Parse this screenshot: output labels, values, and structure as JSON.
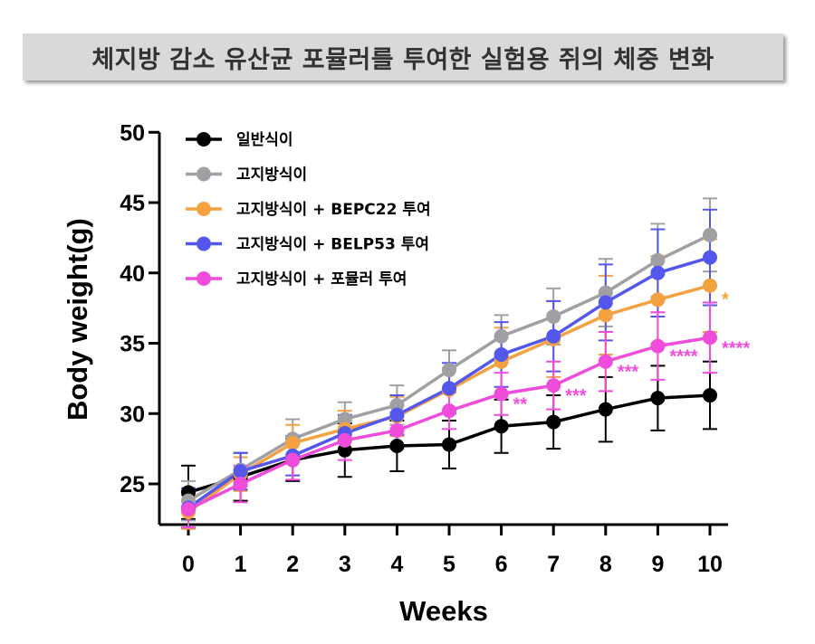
{
  "title": "체지방 감소 유산균 포뮬러를 투여한 실험용 쥐의 체중 변화",
  "chart_data": {
    "type": "line",
    "xlabel": "Weeks",
    "ylabel": "Body weight(g)",
    "xlim": [
      0,
      10
    ],
    "ylim": [
      22,
      50
    ],
    "x_ticks": [
      0,
      1,
      2,
      3,
      4,
      5,
      6,
      7,
      8,
      9,
      10
    ],
    "y_ticks": [
      25,
      30,
      35,
      40,
      45,
      50
    ],
    "grid": false,
    "legend_position": "top-left",
    "x": [
      0,
      1,
      2,
      3,
      4,
      5,
      6,
      7,
      8,
      9,
      10
    ],
    "series": [
      {
        "name": "일반식이",
        "color": "#000000",
        "values": [
          24.4,
          25.5,
          26.7,
          27.4,
          27.7,
          27.8,
          29.1,
          29.4,
          30.3,
          31.1,
          31.3
        ],
        "error": [
          1.9,
          1.7,
          1.5,
          1.9,
          1.8,
          1.7,
          1.9,
          1.9,
          2.3,
          2.3,
          2.4
        ]
      },
      {
        "name": "고지방식이",
        "color": "#a0a0a4",
        "values": [
          23.8,
          26.0,
          28.2,
          29.6,
          30.6,
          33.1,
          35.5,
          36.9,
          38.6,
          40.9,
          42.7
        ],
        "error": [
          1.4,
          1.2,
          1.4,
          1.2,
          1.4,
          1.4,
          1.5,
          2.0,
          2.4,
          2.6,
          2.6
        ]
      },
      {
        "name": "고지방식이 + BEPC22 투여",
        "color": "#f4a142",
        "values": [
          23.0,
          25.7,
          27.9,
          28.9,
          29.8,
          31.7,
          33.7,
          35.3,
          37.0,
          38.1,
          39.1
        ],
        "error": [
          1.2,
          1.2,
          1.3,
          1.3,
          1.4,
          1.5,
          2.4,
          2.7,
          2.8,
          3.1,
          3.3
        ]
      },
      {
        "name": "고지방식이 + BELP53 투여",
        "color": "#5457ee",
        "values": [
          23.3,
          25.9,
          27.0,
          28.6,
          29.9,
          31.8,
          34.2,
          35.5,
          37.9,
          40.0,
          41.1
        ],
        "error": [
          1.4,
          1.3,
          1.4,
          1.3,
          1.4,
          1.8,
          2.3,
          2.5,
          2.7,
          3.1,
          3.4
        ]
      },
      {
        "name": "고지방식이 + 포뮬러 투여",
        "color": "#f04cdb",
        "values": [
          23.2,
          25.0,
          26.7,
          28.1,
          28.8,
          30.2,
          31.4,
          32.0,
          33.7,
          34.8,
          35.4
        ],
        "error": [
          1.3,
          1.3,
          1.4,
          1.4,
          1.3,
          1.3,
          1.5,
          1.7,
          2.1,
          2.4,
          2.5
        ]
      }
    ],
    "annotations": [
      {
        "series": "고지방식이 + BEPC22 투여",
        "x": 10,
        "text": "*",
        "color": "#f4a142"
      },
      {
        "series": "고지방식이 + 포뮬러 투여",
        "x": 6,
        "text": "**",
        "color": "#f04cdb"
      },
      {
        "series": "고지방식이 + 포뮬러 투여",
        "x": 7,
        "text": "***",
        "color": "#f04cdb"
      },
      {
        "series": "고지방식이 + 포뮬러 투여",
        "x": 8,
        "text": "***",
        "color": "#f04cdb"
      },
      {
        "series": "고지방식이 + 포뮬러 투여",
        "x": 9,
        "text": "****",
        "color": "#f04cdb"
      },
      {
        "series": "고지방식이 + 포뮬러 투여",
        "x": 10,
        "text": "****",
        "color": "#f04cdb"
      }
    ]
  }
}
